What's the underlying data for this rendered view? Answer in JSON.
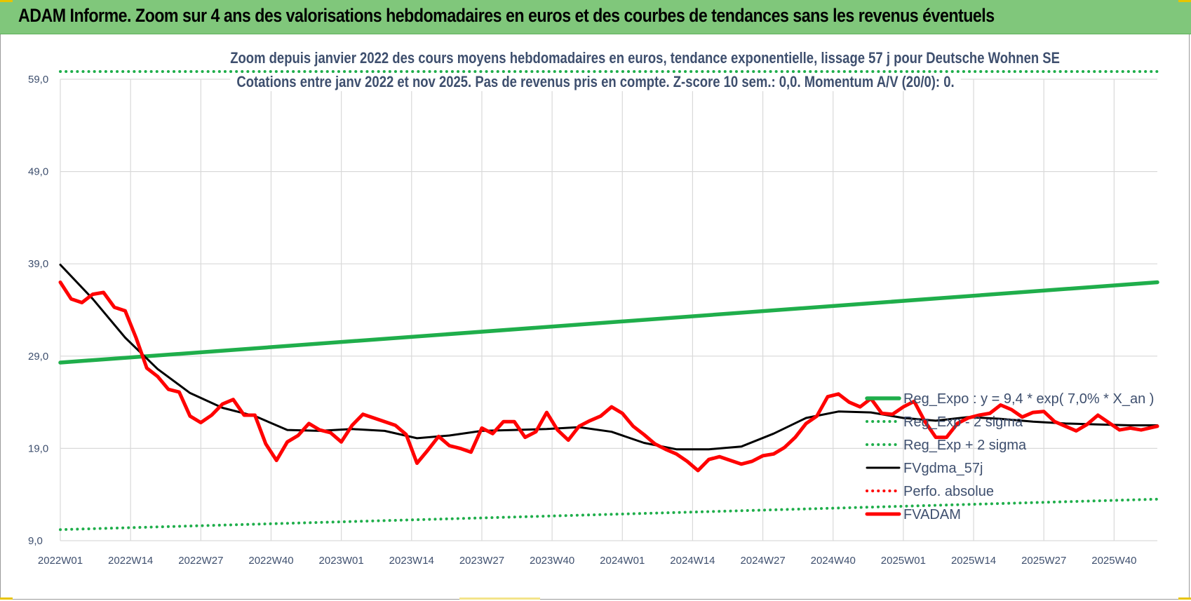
{
  "header": {
    "title": "ADAM Informe. Zoom sur 4 ans des valorisations hebdomadaires en euros et des courbes de tendances sans les revenus éventuels"
  },
  "chart_data": {
    "type": "line",
    "title": "Zoom depuis janvier 2022 des cours moyens hebdomadaires en euros, tendance exponentielle, lissage 57 j pour Deutsche Wohnen SE",
    "subtitle": "Cotations entre janv 2022 et nov 2025. Pas de revenus pris en compte. Z-score 10 sem.: 0,0. Momentum A/V (20/0): 0.",
    "xlabel": "",
    "ylabel": "",
    "ylim": [
      9,
      59
    ],
    "yticks": [
      "59,0",
      "49,0",
      "39,0",
      "29,0",
      "19,0",
      "9,0"
    ],
    "xticks": [
      "2022W01",
      "2022W14",
      "2022W27",
      "2022W40",
      "2023W01",
      "2023W14",
      "2023W27",
      "2023W40",
      "2024W01",
      "2024W14",
      "2024W27",
      "2024W40",
      "2025W01",
      "2025W14",
      "2025W27",
      "2025W40"
    ],
    "week_count": 204,
    "grid": true,
    "legend_position": "right",
    "series": [
      {
        "name": "Reg_Expo : y = 9,4 * exp( 7,0% *  X_an )",
        "color": "#1fae4b",
        "style": "thick",
        "x": [
          0,
          203
        ],
        "y": [
          28.3,
          37.0
        ]
      },
      {
        "name": "Reg_Exp - 2 sigma",
        "color": "#1fae4b",
        "style": "dotted",
        "x": [
          0,
          203
        ],
        "y": [
          10.2,
          13.5
        ]
      },
      {
        "name": "Reg_Exp + 2 sigma",
        "color": "#1fae4b",
        "style": "dotted",
        "x": [
          0,
          203
        ],
        "y": [
          58.8,
          58.8
        ]
      },
      {
        "name": "FVgdma_57j",
        "color": "#000000",
        "style": "solid",
        "x": [
          0,
          6,
          12,
          18,
          24,
          30,
          36,
          42,
          48,
          54,
          60,
          66,
          72,
          78,
          84,
          90,
          96,
          102,
          108,
          114,
          120,
          126,
          132,
          138,
          144,
          150,
          156,
          162,
          168,
          174,
          180,
          186,
          192,
          198,
          203
        ],
        "y": [
          38.9,
          35.2,
          31.0,
          27.6,
          25.0,
          23.4,
          22.5,
          21.0,
          20.9,
          21.1,
          20.9,
          20.1,
          20.4,
          20.9,
          21.0,
          21.1,
          21.3,
          20.8,
          19.6,
          18.9,
          18.9,
          19.2,
          20.6,
          22.3,
          23.0,
          22.9,
          22.3,
          22.0,
          22.4,
          22.2,
          21.9,
          21.7,
          21.6,
          21.5,
          21.5
        ]
      },
      {
        "name": "Perfo. absolue",
        "color": "#ff0000",
        "style": "dotted",
        "x": [],
        "y": []
      },
      {
        "name": "FVADAM",
        "color": "#ff0000",
        "style": "thick",
        "x": [
          0,
          2,
          4,
          6,
          8,
          10,
          12,
          14,
          16,
          18,
          20,
          22,
          24,
          26,
          28,
          30,
          32,
          34,
          36,
          38,
          40,
          42,
          44,
          46,
          48,
          50,
          52,
          54,
          56,
          58,
          60,
          62,
          64,
          66,
          68,
          70,
          72,
          74,
          76,
          78,
          80,
          82,
          84,
          86,
          88,
          90,
          92,
          94,
          96,
          98,
          100,
          102,
          104,
          106,
          108,
          110,
          112,
          114,
          116,
          118,
          120,
          122,
          124,
          126,
          128,
          130,
          132,
          134,
          136,
          138,
          140,
          142,
          144,
          146,
          148,
          150,
          152,
          154,
          156,
          158,
          160,
          162,
          164,
          166,
          168,
          170,
          172,
          174,
          176,
          178,
          180,
          182,
          184,
          186,
          188,
          190,
          192,
          194,
          196,
          198,
          200,
          203
        ],
        "y": [
          37.0,
          35.2,
          34.8,
          35.7,
          35.9,
          34.3,
          33.9,
          31.0,
          27.7,
          26.8,
          25.4,
          25.1,
          22.5,
          21.8,
          22.6,
          23.8,
          24.3,
          22.6,
          22.6,
          19.5,
          17.7,
          19.7,
          20.4,
          21.7,
          21.0,
          20.7,
          19.7,
          21.5,
          22.7,
          22.3,
          21.9,
          21.5,
          20.5,
          17.4,
          18.8,
          20.3,
          19.3,
          19.0,
          18.6,
          21.2,
          20.6,
          21.9,
          21.9,
          20.2,
          20.8,
          22.9,
          21.0,
          19.9,
          21.4,
          22.0,
          22.5,
          23.5,
          22.8,
          21.4,
          20.5,
          19.5,
          18.9,
          18.4,
          17.6,
          16.6,
          17.8,
          18.1,
          17.7,
          17.3,
          17.6,
          18.2,
          18.4,
          19.1,
          20.2,
          21.7,
          22.5,
          24.6,
          24.9,
          24.0,
          23.5,
          24.4,
          22.8,
          22.7,
          23.5,
          24.1,
          21.9,
          20.2,
          20.2,
          21.7,
          22.3,
          22.6,
          22.8,
          23.7,
          23.2,
          22.4,
          22.9,
          23.0,
          21.9,
          21.4,
          20.9,
          21.6,
          22.6,
          21.8,
          21.0,
          21.2,
          21.0,
          21.4
        ]
      }
    ]
  }
}
